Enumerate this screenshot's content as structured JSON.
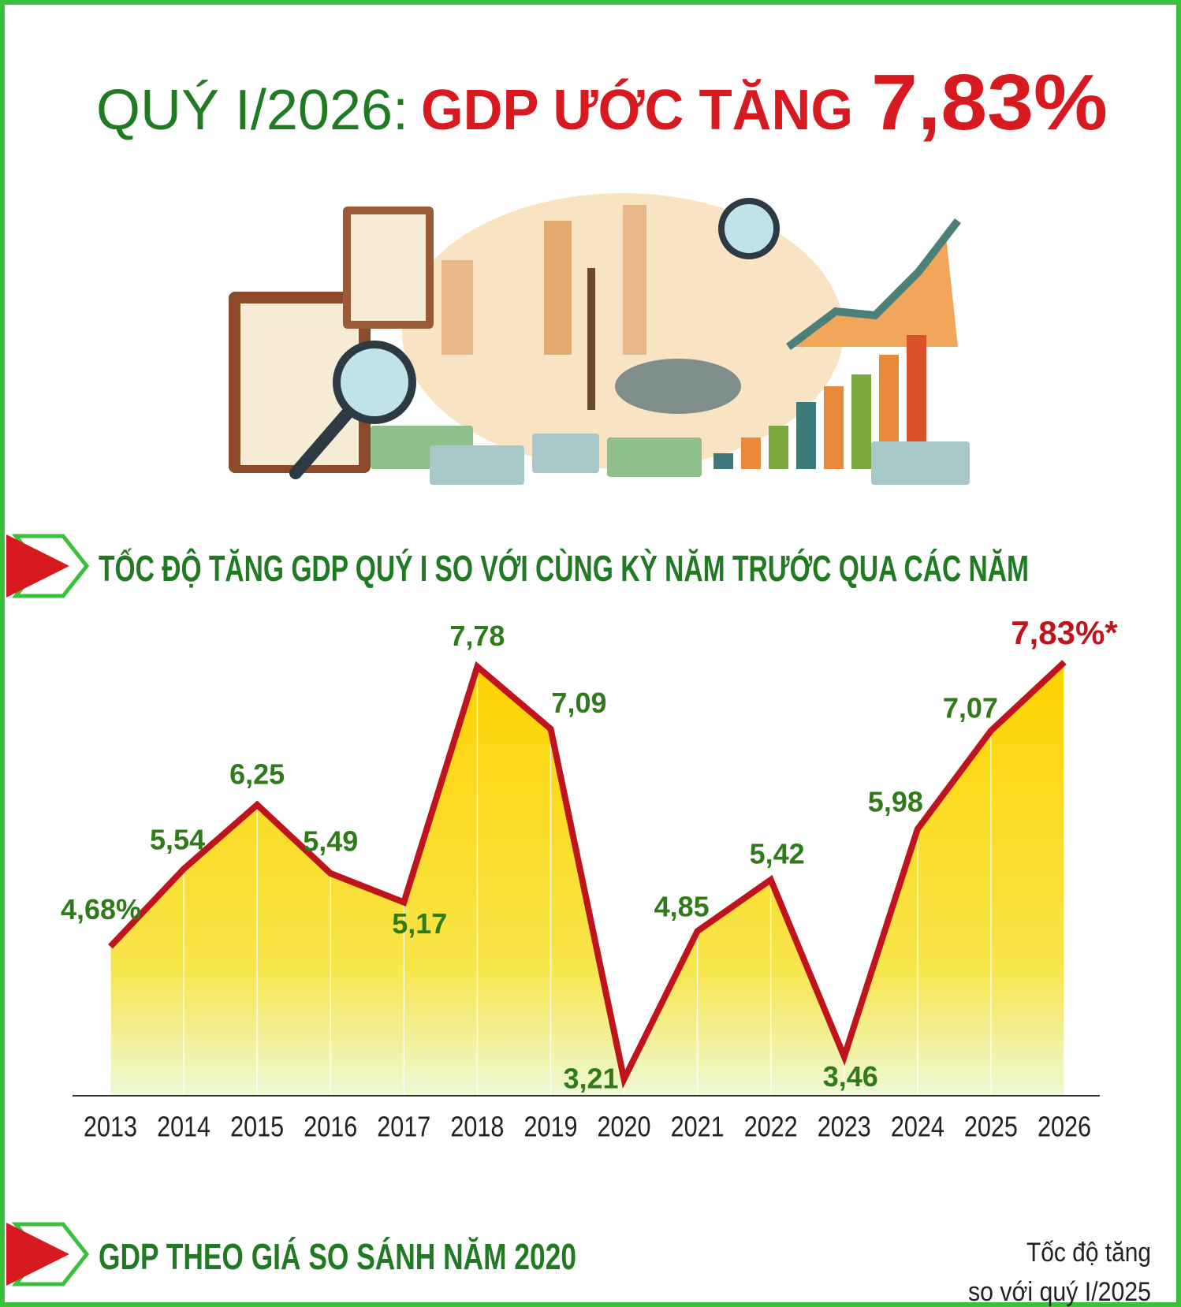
{
  "header": {
    "title_prefix": "QUÝ I/2026:",
    "title_main": "GDP ƯỚC TĂNG",
    "title_value": "7,83%"
  },
  "section1": {
    "title": "TỐC ĐỘ TĂNG GDP QUÝ I SO VỚI CÙNG KỲ NĂM TRƯỚC QUA CÁC NĂM"
  },
  "chart_data": {
    "type": "area",
    "categories": [
      "2013",
      "2014",
      "2015",
      "2016",
      "2017",
      "2018",
      "2019",
      "2020",
      "2021",
      "2022",
      "2023",
      "2024",
      "2025",
      "2026"
    ],
    "values": [
      4.68,
      5.54,
      6.25,
      5.49,
      5.17,
      7.78,
      7.09,
      3.21,
      4.85,
      5.42,
      3.46,
      5.98,
      7.07,
      7.83
    ],
    "value_labels": [
      "4,68%",
      "5,54",
      "6,25",
      "5,49",
      "5,17",
      "7,78",
      "7,09",
      "3,21",
      "4,85",
      "5,42",
      "3,46",
      "5,98",
      "7,07",
      "7,83%*"
    ],
    "color": "#c0141c",
    "area_color": "#ffd200",
    "label_color": "#2f7a1a"
  },
  "section2": {
    "title": "GDP THEO GIÁ SO SÁNH NĂM 2020",
    "note_line1": "Tốc độ tăng",
    "note_line2": "so với quý I/2025"
  }
}
